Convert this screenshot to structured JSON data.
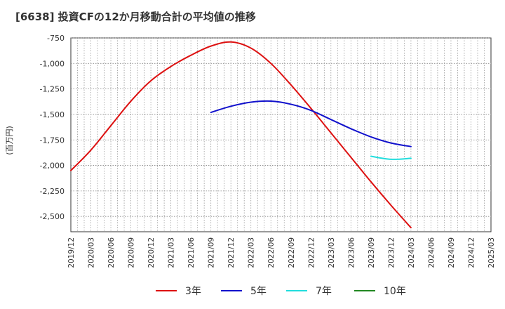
{
  "chart_data": {
    "type": "line",
    "title": "[6638]  投資CFの12か月移動合計の平均値の推移",
    "ylabel": "(百万円)",
    "xlabel": "",
    "ylim": [
      -2650,
      -750
    ],
    "y_ticks": [
      -750,
      -1000,
      -1250,
      -1500,
      -1750,
      -2000,
      -2250,
      -2500
    ],
    "y_tick_labels": [
      "-750",
      "-1,000",
      "-1,250",
      "-1,500",
      "-1,750",
      "-2,000",
      "-2,250",
      "-2,500"
    ],
    "x_ticks": [
      "2019/12",
      "2020/03",
      "2020/06",
      "2020/09",
      "2020/12",
      "2021/03",
      "2021/06",
      "2021/09",
      "2021/12",
      "2022/03",
      "2022/06",
      "2022/09",
      "2022/12",
      "2023/03",
      "2023/06",
      "2023/09",
      "2023/12",
      "2024/03",
      "2024/06",
      "2024/09",
      "2024/12",
      "2025/03"
    ],
    "grid": true,
    "legend_position": "bottom",
    "series": [
      {
        "name": "3年",
        "color": "#dd1111",
        "x": [
          "2019/12",
          "2020/03",
          "2020/06",
          "2020/09",
          "2020/12",
          "2021/03",
          "2021/06",
          "2021/09",
          "2021/12",
          "2022/03",
          "2022/06",
          "2022/09",
          "2022/12",
          "2023/03",
          "2023/06",
          "2023/09",
          "2023/12",
          "2024/03"
        ],
        "values": [
          -2050,
          -1850,
          -1610,
          -1370,
          -1170,
          -1030,
          -920,
          -830,
          -790,
          -850,
          -1000,
          -1210,
          -1440,
          -1680,
          -1920,
          -2160,
          -2390,
          -2610
        ]
      },
      {
        "name": "5年",
        "color": "#1111cc",
        "x": [
          "2021/09",
          "2021/12",
          "2022/03",
          "2022/06",
          "2022/09",
          "2022/12",
          "2023/03",
          "2023/06",
          "2023/09",
          "2023/12",
          "2024/03"
        ],
        "values": [
          -1480,
          -1420,
          -1380,
          -1370,
          -1400,
          -1460,
          -1550,
          -1640,
          -1720,
          -1780,
          -1815
        ]
      },
      {
        "name": "7年",
        "color": "#22dddd",
        "x": [
          "2023/09",
          "2023/12",
          "2024/03"
        ],
        "values": [
          -1910,
          -1940,
          -1930
        ]
      },
      {
        "name": "10年",
        "color": "#228822",
        "x": [],
        "values": []
      }
    ]
  }
}
